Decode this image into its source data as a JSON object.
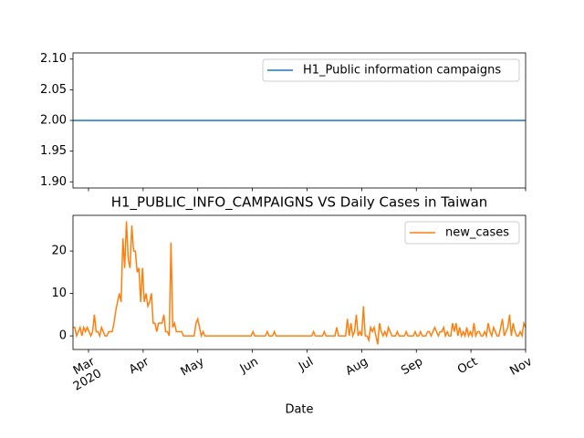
{
  "chart_data": [
    {
      "type": "line",
      "series": [
        {
          "name": "H1_Public information campaigns",
          "color": "#1f77b4",
          "values": [
            2,
            2
          ]
        }
      ],
      "ylim": [
        1.89,
        2.11
      ],
      "yticks": [
        {
          "value": 1.9,
          "label": "1.90"
        },
        1.95,
        {
          "value": 2,
          "label": "2.00"
        },
        2.05,
        {
          "value": 2.1,
          "label": "2.10"
        }
      ],
      "legend": "upper right"
    },
    {
      "type": "line",
      "title": "H1_PUBLIC_INFO_CAMPAIGNS VS Daily Cases in Taiwan",
      "xlabel": "Date",
      "x_tick_labels": [
        "Mar\n2020",
        "Apr",
        "May",
        "Jun",
        "Jul",
        "Aug",
        "Sep",
        "Oct",
        "Nov"
      ],
      "series": [
        {
          "name": "new_cases",
          "color": "#ff7f0e",
          "values": [
            2,
            2,
            0,
            1,
            2,
            0,
            2,
            1,
            2,
            1,
            0,
            1,
            5,
            1,
            1,
            0,
            2,
            1,
            0,
            0,
            1,
            1,
            1,
            3,
            6,
            8,
            10,
            8,
            23,
            16,
            27,
            18,
            16,
            26,
            20,
            20,
            15,
            16,
            8,
            16,
            8,
            10,
            7,
            8,
            10,
            3,
            3,
            1,
            3,
            3,
            3,
            5,
            1,
            1,
            0,
            22,
            2,
            3,
            1,
            1,
            1,
            1,
            0,
            0,
            0,
            0,
            0,
            0,
            0,
            3,
            4,
            2,
            0,
            1,
            0,
            0,
            0,
            0,
            0,
            0,
            0,
            0,
            0,
            0,
            0,
            0,
            0,
            0,
            0,
            0,
            0,
            0,
            0,
            0,
            0,
            0,
            0,
            0,
            0,
            0,
            0,
            1,
            0,
            0,
            0,
            0,
            0,
            0,
            0,
            1,
            0,
            0,
            0,
            1,
            0,
            0,
            0,
            0,
            0,
            0,
            0,
            0,
            0,
            0,
            0,
            0,
            0,
            0,
            0,
            0,
            0,
            0,
            0,
            0,
            0,
            1,
            0,
            0,
            0,
            0,
            0,
            1,
            0,
            0,
            0,
            0,
            0,
            0,
            2,
            0,
            0,
            0,
            0,
            0,
            4,
            0,
            3,
            0,
            1,
            5,
            0,
            1,
            0,
            7,
            0,
            0,
            -1,
            2,
            1,
            2,
            0,
            -2,
            3,
            1,
            0,
            1,
            0,
            2,
            1,
            0,
            0,
            0,
            1,
            0,
            0,
            0,
            0,
            1,
            0,
            0,
            0,
            0,
            1,
            0,
            0,
            1,
            0,
            0,
            0,
            1,
            1,
            0,
            1,
            2,
            1,
            0,
            1,
            1,
            2,
            0,
            1,
            0,
            0,
            3,
            1,
            3,
            0,
            2,
            0,
            1,
            0,
            2,
            0,
            1,
            0,
            3,
            0,
            1,
            1,
            0,
            0,
            1,
            0,
            3,
            1,
            0,
            2,
            1,
            0,
            0,
            2,
            4,
            0,
            1,
            2,
            5,
            0,
            3,
            1,
            0,
            0,
            1,
            0,
            3,
            2
          ]
        }
      ],
      "ylim": [
        -3.2,
        28.4
      ],
      "yticks": [
        0,
        10,
        20
      ],
      "legend": "upper right"
    }
  ]
}
